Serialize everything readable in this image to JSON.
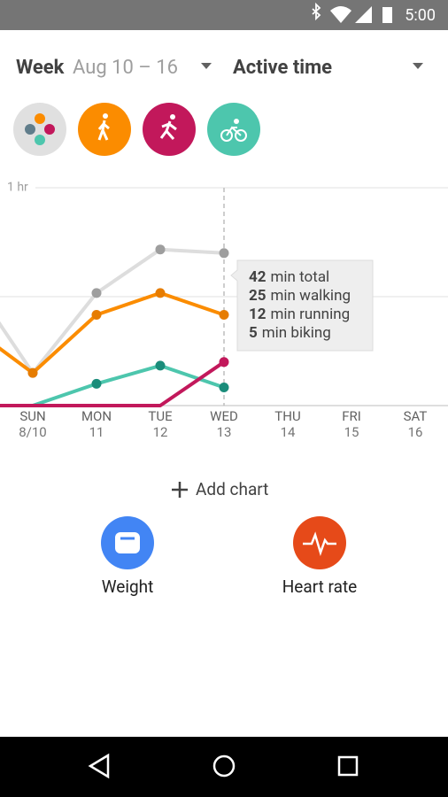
{
  "status_bar": {
    "time": "5:00"
  },
  "header": {
    "period": "Week",
    "range": "Aug 10 – 16",
    "metric": "Active time"
  },
  "chart_data": {
    "type": "line",
    "categories": [
      null,
      "SUN",
      "MON",
      "TUE",
      "WED",
      "THU",
      "FRI",
      "SAT"
    ],
    "dates": [
      null,
      "8/10",
      "11",
      "12",
      "13",
      "14",
      "15",
      "16"
    ],
    "series": [
      {
        "name": "min total",
        "color": "#dddddd",
        "point_color": "#9e9e9e",
        "values": [
          35,
          9,
          31,
          43,
          42,
          null,
          null,
          null
        ]
      },
      {
        "name": "min walking",
        "color": "#fb8c00",
        "point_color": "#e67c00",
        "values": [
          22,
          9,
          25,
          31,
          25,
          null,
          null,
          null
        ]
      },
      {
        "name": "min biking",
        "color": "#4dc6ad",
        "point_color": "#1a8c7a",
        "values": [
          0,
          0,
          6,
          11,
          5,
          null,
          null,
          null
        ]
      },
      {
        "name": "min running",
        "color": "#c2185b",
        "point_color": "#c2185b",
        "values": [
          0,
          0,
          0,
          0,
          12,
          null,
          null,
          null
        ]
      }
    ],
    "tooltip_order": [
      0,
      1,
      3,
      2
    ],
    "ylim": [
      0,
      60
    ],
    "yticks": [
      {
        "value": 60,
        "label": "1 hr"
      }
    ],
    "minor_grid": [
      30
    ]
  },
  "add_chart": "Add chart",
  "shortcuts": [
    "Weight",
    "Heart rate"
  ]
}
